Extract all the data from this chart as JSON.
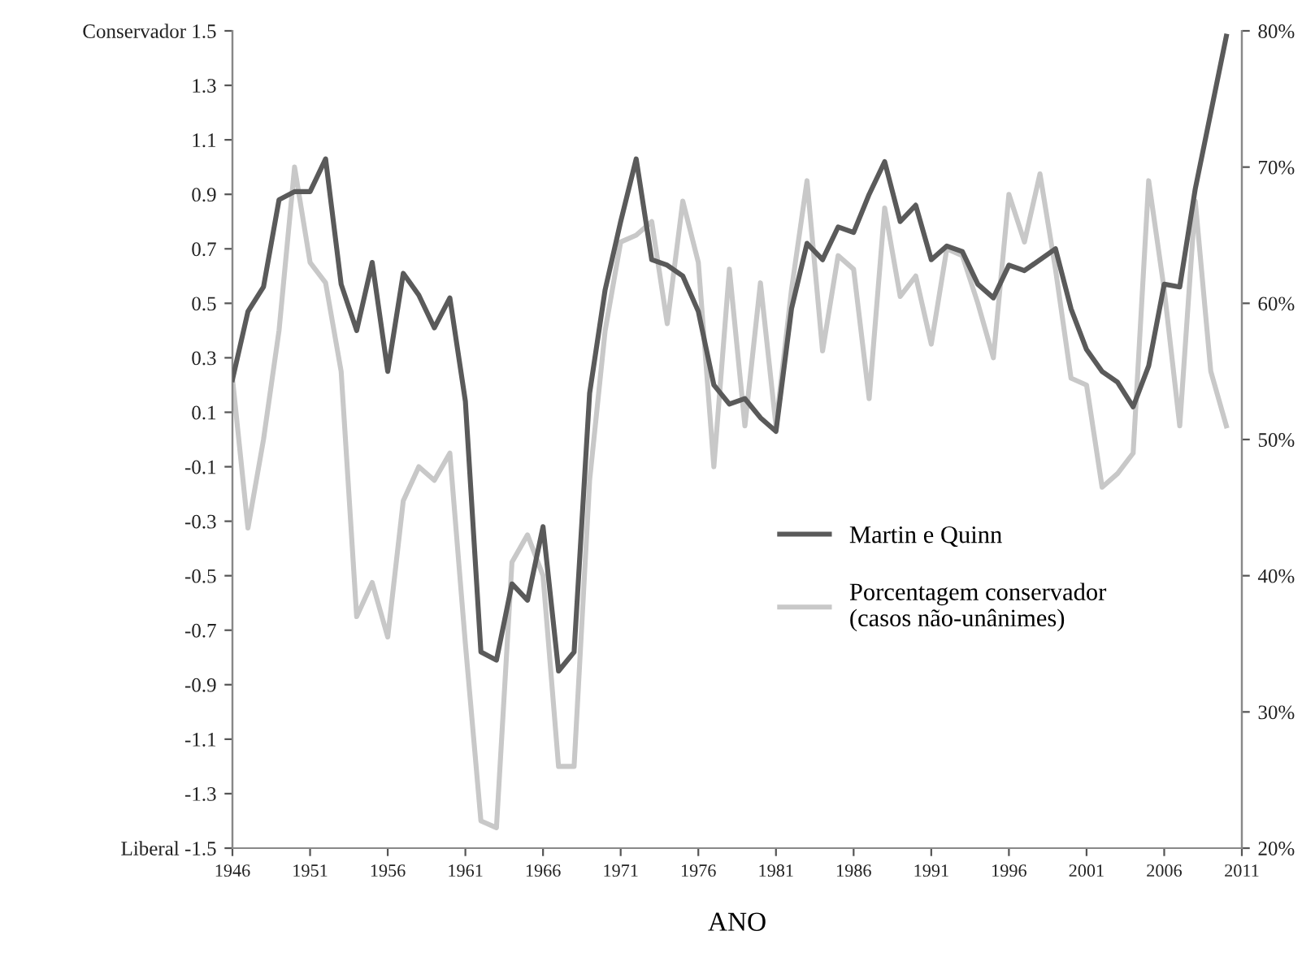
{
  "chart_data": {
    "type": "line",
    "xlabel": "ANO",
    "x": [
      1946,
      1947,
      1948,
      1949,
      1950,
      1951,
      1952,
      1953,
      1954,
      1955,
      1956,
      1957,
      1958,
      1959,
      1960,
      1961,
      1962,
      1963,
      1964,
      1965,
      1966,
      1967,
      1968,
      1969,
      1970,
      1971,
      1972,
      1973,
      1974,
      1975,
      1976,
      1977,
      1978,
      1979,
      1980,
      1981,
      1982,
      1983,
      1984,
      1985,
      1986,
      1987,
      1988,
      1989,
      1990,
      1991,
      1992,
      1993,
      1994,
      1995,
      1996,
      1997,
      1998,
      1999,
      2000,
      2001,
      2002,
      2003,
      2004,
      2005,
      2006,
      2007,
      2008,
      2009,
      2010
    ],
    "series": [
      {
        "name": "Martin e Quinn",
        "color": "#5a5a5a",
        "values": [
          0.22,
          0.47,
          0.56,
          0.88,
          0.91,
          0.91,
          1.03,
          0.57,
          0.4,
          0.65,
          0.25,
          0.61,
          0.53,
          0.41,
          0.52,
          0.14,
          -0.78,
          -0.81,
          -0.53,
          -0.59,
          -0.32,
          -0.85,
          -0.78,
          0.17,
          0.55,
          0.8,
          1.03,
          0.66,
          0.64,
          0.6,
          0.47,
          0.2,
          0.13,
          0.15,
          0.08,
          0.03,
          0.48,
          0.72,
          0.66,
          0.78,
          0.76,
          0.9,
          1.02,
          0.8,
          0.86,
          0.66,
          0.71,
          0.69,
          0.57,
          0.52,
          0.64,
          0.62,
          0.66,
          0.7,
          0.48,
          0.33,
          0.25,
          0.21,
          0.12,
          0.27,
          0.57,
          0.56,
          0.92,
          1.2,
          1.48
        ]
      },
      {
        "name": "Porcentagem conservador\n(casos não-unânimes)",
        "color": "#c8c8c8",
        "axis": "y2",
        "values": [
          54.5,
          43.5,
          50,
          58,
          70,
          63,
          61.5,
          55,
          37,
          39.5,
          35.5,
          45.5,
          48,
          47,
          49,
          35,
          22,
          21.5,
          41,
          43,
          40,
          26,
          26,
          47,
          58,
          64.5,
          65,
          66,
          58.5,
          67.5,
          63,
          48,
          62.5,
          51,
          61.5,
          51,
          61,
          69,
          56.5,
          63.5,
          62.5,
          53,
          67,
          60.5,
          62,
          57,
          64,
          63.5,
          60,
          56,
          68,
          64.5,
          69.5,
          62.5,
          54.5,
          54,
          46.5,
          47.5,
          49,
          69,
          61,
          51,
          67.5,
          55,
          51
        ]
      }
    ],
    "xlim": [
      1946,
      2011
    ],
    "xticks": [
      1946,
      1951,
      1956,
      1961,
      1966,
      1971,
      1976,
      1981,
      1986,
      1991,
      1996,
      2001,
      2006,
      2011
    ],
    "ylim": [
      -1.5,
      1.5
    ],
    "yticks": [
      {
        "value": 1.5,
        "label": "Conservador 1.5"
      },
      {
        "value": 1.3,
        "label": "1.3"
      },
      {
        "value": 1.1,
        "label": "1.1"
      },
      {
        "value": 0.9,
        "label": "0.9"
      },
      {
        "value": 0.7,
        "label": "0.7"
      },
      {
        "value": 0.5,
        "label": "0.5"
      },
      {
        "value": 0.3,
        "label": "0.3"
      },
      {
        "value": 0.1,
        "label": "0.1"
      },
      {
        "value": -0.1,
        "label": "-0.1"
      },
      {
        "value": -0.3,
        "label": "-0.3"
      },
      {
        "value": -0.5,
        "label": "-0.5"
      },
      {
        "value": -0.7,
        "label": "-0.7"
      },
      {
        "value": -0.9,
        "label": "-0.9"
      },
      {
        "value": -1.1,
        "label": "-1.1"
      },
      {
        "value": -1.3,
        "label": "-1.3"
      },
      {
        "value": -1.5,
        "label": "Liberal -1.5"
      }
    ],
    "y2lim": [
      20,
      80
    ],
    "y2ticks": [
      {
        "value": 20,
        "label": "20%"
      },
      {
        "value": 30,
        "label": "30%"
      },
      {
        "value": 40,
        "label": "40%"
      },
      {
        "value": 50,
        "label": "50%"
      },
      {
        "value": 60,
        "label": "60%"
      },
      {
        "value": 70,
        "label": "70%"
      },
      {
        "value": 80,
        "label": "80%"
      }
    ],
    "legend": "right",
    "grid": false
  }
}
